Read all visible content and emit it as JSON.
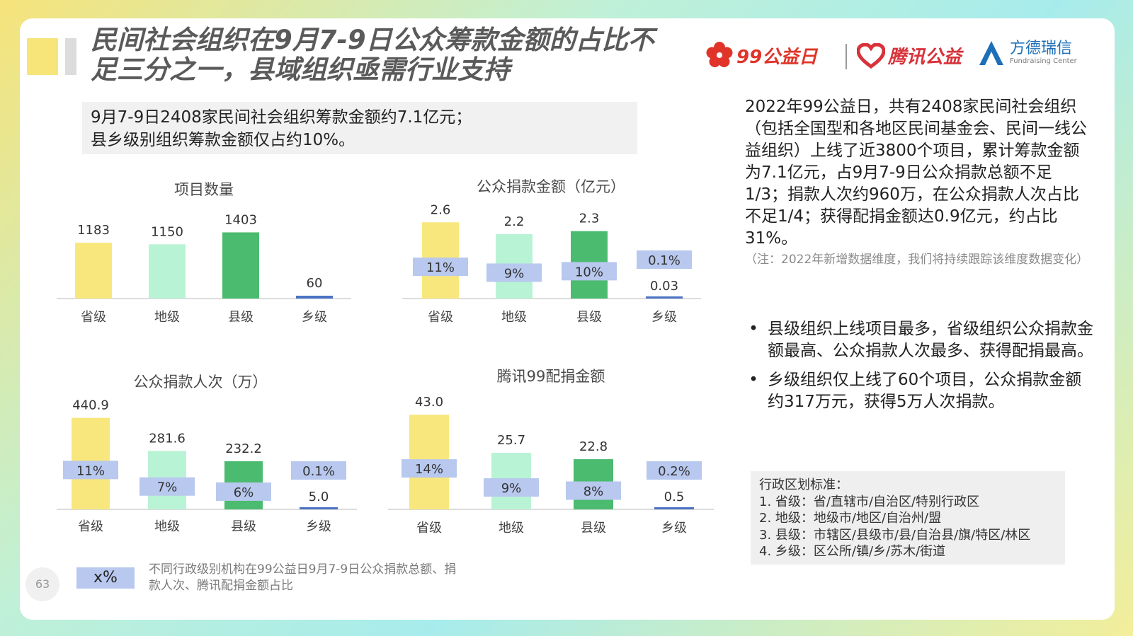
{
  "title": {
    "line1": "民间社会组织在9月7-9日公众筹款金额的占比不",
    "line2": "足三分之一，县域组织亟需行业支持"
  },
  "logos": {
    "ninety_nine": "99公益日",
    "tencent": "腾讯公益",
    "fangde_cn": "方德瑞信",
    "fangde_en": "Fundraising Center"
  },
  "summary": {
    "line1": "9月7-9日2408家民间社会组织筹款金额约7.1亿元；",
    "line2": "县乡级别组织筹款金额仅占约10%。"
  },
  "colors": {
    "province": "#f8e77c",
    "prefecture": "#b9f3d6",
    "county": "#4bbb6f",
    "township": "#4a72c4",
    "pct_box": "#b8c8ee"
  },
  "chart_data": [
    {
      "type": "bar",
      "title": "项目数量",
      "categories": [
        "省级",
        "地级",
        "县级",
        "乡级"
      ],
      "values": [
        1183,
        1150,
        1403,
        60
      ],
      "value_labels": [
        "1183",
        "1150",
        "1403",
        "60"
      ],
      "ylim": [
        0,
        1500
      ]
    },
    {
      "type": "bar",
      "title": "公众捐款金额（亿元）",
      "categories": [
        "省级",
        "地级",
        "县级",
        "乡级"
      ],
      "values": [
        2.6,
        2.2,
        2.3,
        0.03
      ],
      "value_labels": [
        "2.6",
        "2.2",
        "2.3",
        "0.03"
      ],
      "share_labels": [
        "11%",
        "9%",
        "10%",
        "0.1%"
      ],
      "ylim": [
        0,
        2.8
      ]
    },
    {
      "type": "bar",
      "title": "公众捐款人次（万）",
      "categories": [
        "省级",
        "地级",
        "县级",
        "乡级"
      ],
      "values": [
        440.9,
        281.6,
        232.2,
        5.0
      ],
      "value_labels": [
        "440.9",
        "281.6",
        "232.2",
        "5.0"
      ],
      "share_labels": [
        "11%",
        "7%",
        "6%",
        "0.1%"
      ],
      "ylim": [
        0,
        450
      ]
    },
    {
      "type": "bar",
      "title": "腾讯99配捐金额",
      "categories": [
        "省级",
        "地级",
        "县级",
        "乡级"
      ],
      "values": [
        43.0,
        25.7,
        22.8,
        0.5
      ],
      "value_labels": [
        "43.0",
        "25.7",
        "22.8",
        "0.5"
      ],
      "share_labels": [
        "14%",
        "9%",
        "8%",
        "0.2%"
      ],
      "ylim": [
        0,
        45
      ]
    }
  ],
  "right_paragraph": "2022年99公益日，共有2408家民间社会组织（包括全国型和各地区民间基金会、民间一线公益组织）上线了近3800个项目，累计筹款金额为7.1亿元，占9月7-9日公众捐款总额不足1/3；捐款人次约960万，在公众捐款人次占比不足1/4；获得配捐金额达0.9亿元，约占比31%。",
  "right_note": "（注：2022年新增数据维度，我们将持续跟踪该维度数据变化）",
  "bullets": [
    "县级组织上线项目最多，省级组织公众捐款金额最高、公众捐款人次最多、获得配捐最高。",
    "乡级组织仅上线了60个项目，公众捐款金额约317万元，获得5万人次捐款。"
  ],
  "bullet_symbol": "•",
  "admin_box": {
    "heading": "行政区划标准：",
    "items": [
      "1. 省级：省/直辖市/自治区/特别行政区",
      "2. 地级：地级市/地区/自治州/盟",
      "3. 县级：市辖区/县级市/县/自治县/旗/特区/林区",
      "4. 乡级：区公所/镇/乡/苏木/街道"
    ]
  },
  "legend": {
    "box_label": "x%",
    "text": "不同行政级别机构在99公益日9月7-9日公众捐款总额、捐款人次、腾讯配捐金额占比"
  },
  "page_number": "63"
}
